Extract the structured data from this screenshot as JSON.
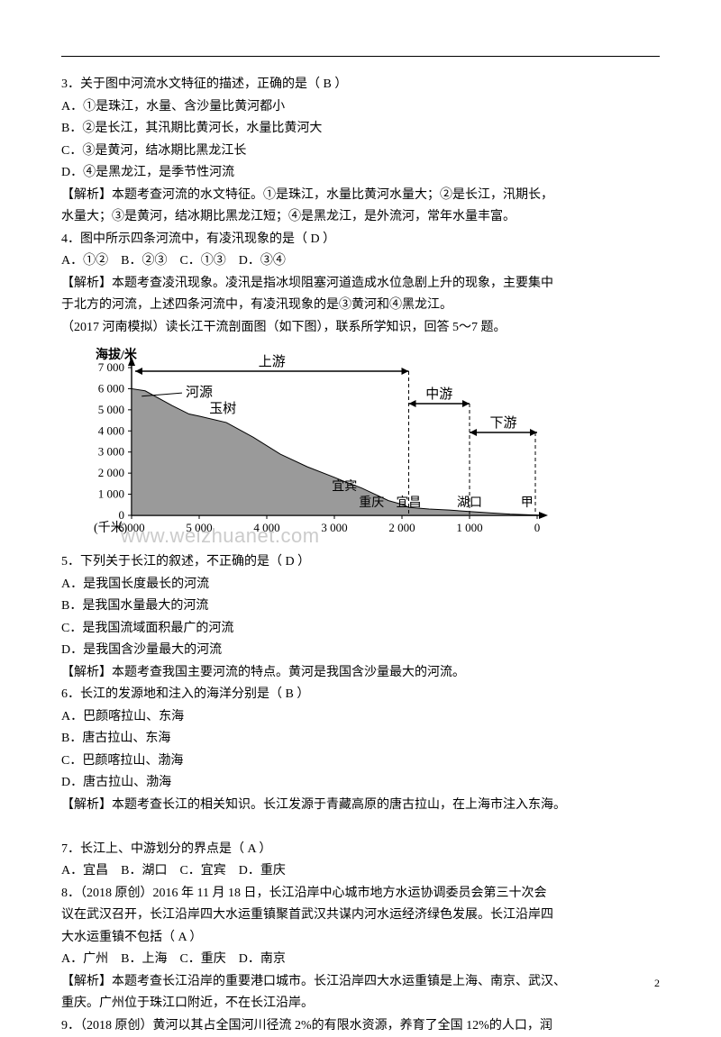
{
  "q3": {
    "stem": "3．关于图中河流水文特征的描述，正确的是（ B ）",
    "a": "A．①是珠江，水量、含沙量比黄河都小",
    "b": "B．②是长江，其汛期比黄河长，水量比黄河大",
    "c": "C．③是黄河，结冰期比黑龙江长",
    "d": "D．④是黑龙江，是季节性河流",
    "exp1": "【解析】本题考查河流的水文特征。①是珠江，水量比黄河水量大；②是长江，汛期长，",
    "exp2": "水量大；③是黄河，结冰期比黑龙江短；④是黑龙江，是外流河，常年水量丰富。"
  },
  "q4": {
    "stem": "4．图中所示四条河流中，有凌汛现象的是（ D ）",
    "opts": "A．①②    B．②③    C．①③    D．③④",
    "exp1": "【解析】本题考查凌汛现象。凌汛是指冰坝阻塞河道造成水位急剧上升的现象，主要集中",
    "exp2": "于北方的河流，上述四条河流中，有凌汛现象的是③黄河和④黑龙江。"
  },
  "intro57": "（2017 河南模拟）读长江干流剖面图（如下图），联系所学知识，回答 5～7 题。",
  "chart": {
    "yTitle": "海拔/米",
    "xTitle": "(千米)",
    "yTicks": [
      "0",
      "1 000",
      "2 000",
      "3 000",
      "4 000",
      "5 000",
      "6 000",
      "7 000"
    ],
    "xTicks": [
      "6 000",
      "5 000",
      "4 000",
      "3 000",
      "2 000",
      "1 000",
      "0"
    ],
    "sections": {
      "up": "上游",
      "mid": "中游",
      "down": "下游"
    },
    "labels": {
      "source": "河源",
      "yushu": "玉树",
      "yibin": "宜宾",
      "chongqing": "重庆",
      "yichang": "宜昌",
      "hukou": "湖口",
      "jia": "甲"
    },
    "profile": [
      [
        6000,
        6000
      ],
      [
        5800,
        5900
      ],
      [
        5400,
        5200
      ],
      [
        5150,
        4800
      ],
      [
        5000,
        4700
      ],
      [
        4600,
        4400
      ],
      [
        4200,
        3700
      ],
      [
        3800,
        2900
      ],
      [
        3400,
        2300
      ],
      [
        3000,
        1800
      ],
      [
        2850,
        1600
      ],
      [
        2600,
        1300
      ],
      [
        2400,
        1000
      ],
      [
        2200,
        700
      ],
      [
        2000,
        520
      ],
      [
        1900,
        380
      ],
      [
        1600,
        300
      ],
      [
        1300,
        250
      ],
      [
        1000,
        180
      ],
      [
        700,
        120
      ],
      [
        400,
        60
      ],
      [
        0,
        10
      ]
    ],
    "colors": {
      "fill": "#9a9a9a",
      "stroke": "#000000",
      "text": "#000000"
    }
  },
  "q5": {
    "stem": "5．下列关于长江的叙述，不正确的是（ D ）",
    "a": "A．是我国长度最长的河流",
    "b": "B．是我国水量最大的河流",
    "c": "C．是我国流域面积最广的河流",
    "d": "D．是我国含沙量最大的河流",
    "exp": "【解析】本题考查我国主要河流的特点。黄河是我国含沙量最大的河流。"
  },
  "q6": {
    "stem": "6．长江的发源地和注入的海洋分别是（ B ）",
    "a": "A．巴颜喀拉山、东海",
    "b": "B．唐古拉山、东海",
    "c": "C．巴颜喀拉山、渤海",
    "d": "D．唐古拉山、渤海",
    "exp": "【解析】本题考查长江的相关知识。长江发源于青藏高原的唐古拉山，在上海市注入东海。"
  },
  "q7": {
    "stem": "7．长江上、中游划分的界点是（ A ）",
    "opts": "A．宜昌    B．湖口    C．宜宾    D．重庆"
  },
  "q8": {
    "l1": "8．（2018 原创）2016 年 11 月 18 日，长江沿岸中心城市地方水运协调委员会第三十次会",
    "l2": "议在武汉召开，长江沿岸四大水运重镇聚首武汉共谋内河水运经济绿色发展。长江沿岸四",
    "l3": "大水运重镇不包括（ A ）",
    "opts": "A．广州    B．上海    C．重庆    D．南京",
    "exp1": "【解析】本题考查长江沿岸的重要港口城市。长江沿岸四大水运重镇是上海、南京、武汉、",
    "exp2": "重庆。广州位于珠江口附近，不在长江沿岸。"
  },
  "q9": {
    "l1": "9．（2018 原创）黄河以其占全国河川径流 2%的有限水资源，养育了全国 12%的人口，润"
  },
  "watermark": "www.weizhuanet.com",
  "pageNum": "2"
}
